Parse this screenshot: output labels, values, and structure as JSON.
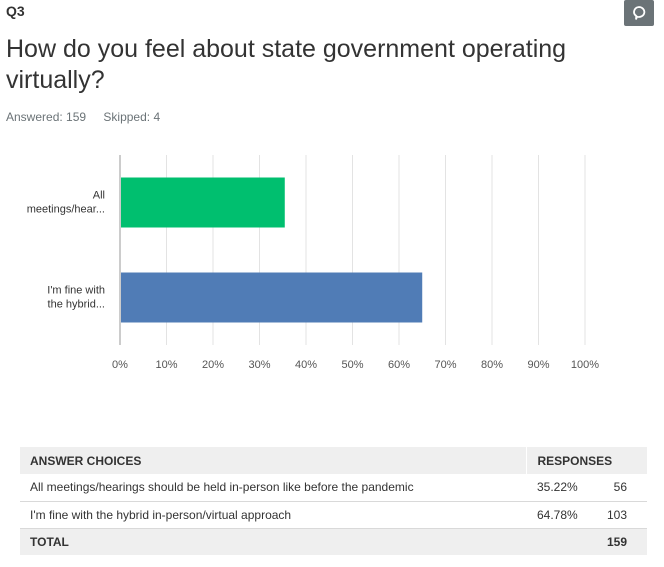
{
  "question": {
    "number": "Q3",
    "title": "How do you feel about state government operating virtually?",
    "answered": "Answered: 159",
    "skipped": "Skipped: 4"
  },
  "chart_data": {
    "type": "bar",
    "orientation": "horizontal",
    "categories": [
      "All meetings/hear...",
      "I'm fine with the hybrid..."
    ],
    "category_lines": [
      [
        "All",
        "meetings/hear..."
      ],
      [
        "I'm fine with",
        "the hybrid..."
      ]
    ],
    "values": [
      35.22,
      64.78
    ],
    "colors": [
      "#00bf6f",
      "#507cb6"
    ],
    "xlim": [
      0,
      100
    ],
    "xticks": [
      "0%",
      "10%",
      "20%",
      "30%",
      "40%",
      "50%",
      "60%",
      "70%",
      "80%",
      "90%",
      "100%"
    ],
    "grid": true
  },
  "table": {
    "headers": {
      "choices": "ANSWER CHOICES",
      "responses": "RESPONSES"
    },
    "rows": [
      {
        "label": "All meetings/hearings should be held in-person like before the pandemic",
        "pct": "35.22%",
        "count": "56"
      },
      {
        "label": "I'm fine with the hybrid in-person/virtual approach",
        "pct": "64.78%",
        "count": "103"
      }
    ],
    "total": {
      "label": "TOTAL",
      "count": "159"
    }
  }
}
